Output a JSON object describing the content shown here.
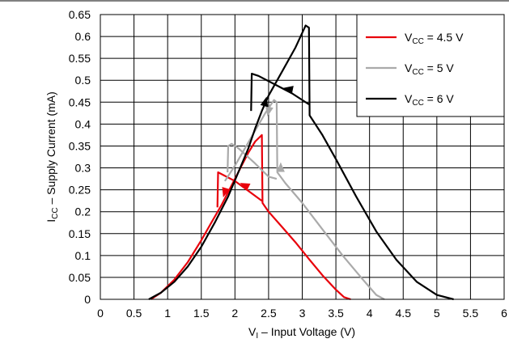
{
  "chart_data": {
    "type": "line",
    "xlabel": {
      "main": "V",
      "sub": "I",
      "rest": " – Input Voltage (V)"
    },
    "ylabel": {
      "main": "I",
      "sub": "CC",
      "rest": " – Supply Current (mA)"
    },
    "xlim": [
      0,
      6
    ],
    "ylim": [
      0,
      0.65
    ],
    "x_ticks": [
      "0",
      "0.5",
      "1",
      "1.5",
      "2",
      "2.5",
      "3",
      "3.5",
      "4",
      "4.5",
      "5",
      "5.5",
      "6"
    ],
    "y_ticks": [
      "0",
      "0.05",
      "0.1",
      "0.15",
      "0.2",
      "0.25",
      "0.3",
      "0.35",
      "0.4",
      "0.45",
      "0.5",
      "0.55",
      "0.6",
      "0.65"
    ],
    "grid": true,
    "legend_position": "top-right",
    "series": [
      {
        "label": {
          "main": "V",
          "sub": "CC",
          "rest": " = 4.5 V"
        },
        "color": "#e8000b",
        "points": [
          [
            0.75,
            0
          ],
          [
            0.9,
            0.015
          ],
          [
            1.1,
            0.045
          ],
          [
            1.3,
            0.085
          ],
          [
            1.5,
            0.135
          ],
          [
            1.65,
            0.175
          ],
          [
            1.8,
            0.215
          ],
          [
            1.9,
            0.245
          ],
          [
            2.0,
            0.275
          ],
          [
            2.1,
            0.305
          ],
          [
            2.2,
            0.335
          ],
          [
            2.3,
            0.36
          ],
          [
            2.4,
            0.375
          ],
          [
            2.41,
            0.22
          ],
          [
            2.5,
            0.2
          ],
          [
            2.7,
            0.165
          ],
          [
            2.9,
            0.13
          ],
          [
            3.1,
            0.092
          ],
          [
            3.3,
            0.055
          ],
          [
            3.5,
            0.022
          ],
          [
            3.62,
            0.005
          ],
          [
            3.72,
            0
          ],
          [
            null,
            null
          ],
          [
            2.4,
            0.225
          ],
          [
            2.0,
            0.27
          ],
          [
            1.75,
            0.29
          ],
          [
            1.74,
            0.21
          ]
        ],
        "arrows": [
          [
            1.85,
            0.245,
            -0.3,
            -1
          ],
          [
            2.15,
            0.26,
            -1,
            0.5
          ]
        ]
      },
      {
        "label": {
          "main": "V",
          "sub": "CC",
          "rest": " = 5 V"
        },
        "color": "#aaaaaa",
        "points": [
          [
            1.85,
            0.27
          ],
          [
            2.0,
            0.305
          ],
          [
            2.15,
            0.345
          ],
          [
            2.3,
            0.385
          ],
          [
            2.45,
            0.425
          ],
          [
            2.58,
            0.455
          ],
          [
            2.62,
            0.45
          ],
          [
            2.63,
            0.29
          ],
          [
            2.75,
            0.265
          ],
          [
            3.0,
            0.22
          ],
          [
            3.3,
            0.16
          ],
          [
            3.6,
            0.1
          ],
          [
            3.9,
            0.045
          ],
          [
            4.1,
            0.01
          ],
          [
            4.22,
            0
          ],
          [
            null,
            null
          ],
          [
            2.62,
            0.275
          ],
          [
            2.5,
            0.28
          ],
          [
            2.3,
            0.31
          ],
          [
            2.05,
            0.345
          ],
          [
            1.95,
            0.355
          ],
          [
            1.9,
            0.35
          ],
          [
            1.89,
            0.29
          ]
        ],
        "arrows": [
          [
            2.5,
            0.43,
            -0.2,
            -1
          ],
          [
            2.68,
            0.3,
            0,
            1
          ]
        ]
      },
      {
        "label": {
          "main": "V",
          "sub": "CC",
          "rest": " = 6 V"
        },
        "color": "#000000",
        "points": [
          [
            0.72,
            0
          ],
          [
            0.9,
            0.015
          ],
          [
            1.1,
            0.04
          ],
          [
            1.3,
            0.075
          ],
          [
            1.5,
            0.12
          ],
          [
            1.7,
            0.175
          ],
          [
            1.9,
            0.235
          ],
          [
            2.05,
            0.29
          ],
          [
            2.2,
            0.345
          ],
          [
            2.3,
            0.39
          ],
          [
            2.4,
            0.43
          ],
          [
            2.5,
            0.465
          ],
          [
            2.7,
            0.52
          ],
          [
            2.9,
            0.575
          ],
          [
            3.05,
            0.625
          ],
          [
            3.1,
            0.62
          ],
          [
            3.11,
            0.42
          ],
          [
            3.3,
            0.375
          ],
          [
            3.5,
            0.32
          ],
          [
            3.8,
            0.235
          ],
          [
            4.1,
            0.155
          ],
          [
            4.4,
            0.09
          ],
          [
            4.7,
            0.04
          ],
          [
            5.0,
            0.01
          ],
          [
            5.25,
            0
          ],
          [
            null,
            null
          ],
          [
            3.1,
            0.445
          ],
          [
            2.85,
            0.47
          ],
          [
            2.6,
            0.49
          ],
          [
            2.35,
            0.51
          ],
          [
            2.25,
            0.515
          ],
          [
            2.24,
            0.43
          ]
        ],
        "arrows": [
          [
            2.45,
            0.45,
            0.25,
            1
          ],
          [
            2.8,
            0.48,
            -1,
            0.2
          ]
        ]
      }
    ]
  }
}
